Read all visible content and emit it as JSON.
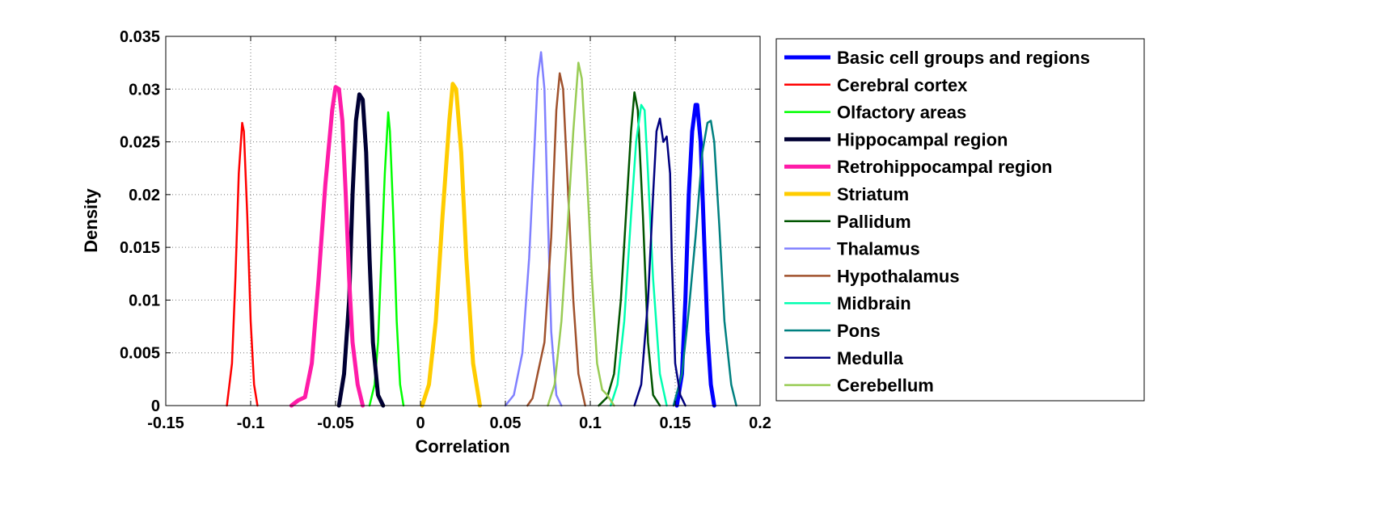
{
  "chart_data": {
    "type": "line",
    "title": "",
    "xlabel": "Correlation",
    "ylabel": "Density",
    "xlim": [
      -0.15,
      0.2
    ],
    "ylim": [
      0,
      0.035
    ],
    "xticks": [
      "-0.15",
      "-0.1",
      "-0.05",
      "0",
      "0.05",
      "0.1",
      "0.15",
      "0.2"
    ],
    "xtick_values": [
      -0.15,
      -0.1,
      -0.05,
      0,
      0.05,
      0.1,
      0.15,
      0.2
    ],
    "yticks": [
      "0",
      "0.005",
      "0.01",
      "0.015",
      "0.02",
      "0.025",
      "0.03",
      "0.035"
    ],
    "ytick_values": [
      0,
      0.005,
      0.01,
      0.015,
      0.02,
      0.025,
      0.03,
      0.035
    ],
    "grid": true,
    "legend_position": "right, outside plot",
    "series": [
      {
        "name": "Basic cell groups and regions",
        "color": "#0000ff",
        "thick": true,
        "x": [
          0.151,
          0.154,
          0.156,
          0.158,
          0.16,
          0.162,
          0.163,
          0.165,
          0.167,
          0.169,
          0.171,
          0.173
        ],
        "y": [
          0,
          0.003,
          0.01,
          0.02,
          0.026,
          0.0285,
          0.0285,
          0.025,
          0.016,
          0.007,
          0.002,
          0
        ]
      },
      {
        "name": "Cerebral cortex",
        "color": "#ff0000",
        "thick": false,
        "x": [
          -0.114,
          -0.111,
          -0.109,
          -0.107,
          -0.105,
          -0.104,
          -0.102,
          -0.1,
          -0.098,
          -0.096
        ],
        "y": [
          0,
          0.004,
          0.012,
          0.022,
          0.0268,
          0.026,
          0.018,
          0.008,
          0.002,
          0
        ]
      },
      {
        "name": "Olfactory areas",
        "color": "#00ff00",
        "thick": false,
        "x": [
          -0.03,
          -0.027,
          -0.025,
          -0.023,
          -0.021,
          -0.019,
          -0.018,
          -0.016,
          -0.014,
          -0.012,
          -0.01
        ],
        "y": [
          0,
          0.002,
          0.006,
          0.014,
          0.022,
          0.0278,
          0.026,
          0.018,
          0.008,
          0.002,
          0
        ]
      },
      {
        "name": "Hippocampal region",
        "color": "#000033",
        "thick": true,
        "x": [
          -0.048,
          -0.045,
          -0.042,
          -0.04,
          -0.038,
          -0.036,
          -0.034,
          -0.032,
          -0.03,
          -0.028,
          -0.025,
          -0.022
        ],
        "y": [
          0,
          0.003,
          0.01,
          0.02,
          0.027,
          0.0295,
          0.029,
          0.024,
          0.014,
          0.006,
          0.001,
          0
        ]
      },
      {
        "name": "Retrohippocampal region",
        "color": "#ff1ca8",
        "thick": true,
        "x": [
          -0.076,
          -0.072,
          -0.068,
          -0.064,
          -0.06,
          -0.056,
          -0.052,
          -0.05,
          -0.048,
          -0.046,
          -0.044,
          -0.042,
          -0.04,
          -0.037,
          -0.034
        ],
        "y": [
          0,
          0.0005,
          0.0008,
          0.004,
          0.012,
          0.021,
          0.028,
          0.0302,
          0.03,
          0.027,
          0.02,
          0.012,
          0.006,
          0.002,
          0
        ]
      },
      {
        "name": "Striatum",
        "color": "#ffcc00",
        "thick": true,
        "x": [
          0.001,
          0.005,
          0.009,
          0.013,
          0.017,
          0.019,
          0.021,
          0.024,
          0.027,
          0.031,
          0.035
        ],
        "y": [
          0,
          0.002,
          0.008,
          0.018,
          0.027,
          0.0305,
          0.03,
          0.024,
          0.014,
          0.004,
          0
        ]
      },
      {
        "name": "Pallidum",
        "color": "#005500",
        "thick": false,
        "x": [
          0.105,
          0.11,
          0.114,
          0.118,
          0.121,
          0.124,
          0.126,
          0.128,
          0.131,
          0.134,
          0.137,
          0.141
        ],
        "y": [
          0,
          0.0008,
          0.003,
          0.01,
          0.018,
          0.026,
          0.0297,
          0.028,
          0.018,
          0.006,
          0.001,
          0
        ]
      },
      {
        "name": "Thalamus",
        "color": "#8080ff",
        "thick": false,
        "x": [
          0.05,
          0.055,
          0.06,
          0.064,
          0.067,
          0.069,
          0.071,
          0.073,
          0.075,
          0.077,
          0.08,
          0.083
        ],
        "y": [
          0,
          0.001,
          0.005,
          0.014,
          0.024,
          0.031,
          0.0335,
          0.03,
          0.018,
          0.007,
          0.001,
          0
        ]
      },
      {
        "name": "Hypothalamus",
        "color": "#a0522d",
        "thick": false,
        "x": [
          0.063,
          0.066,
          0.069,
          0.073,
          0.077,
          0.08,
          0.082,
          0.084,
          0.087,
          0.09,
          0.093,
          0.097
        ],
        "y": [
          0,
          0.0007,
          0.003,
          0.006,
          0.016,
          0.028,
          0.0315,
          0.03,
          0.02,
          0.01,
          0.003,
          0
        ]
      },
      {
        "name": "Midbrain",
        "color": "#00ffb0",
        "thick": false,
        "x": [
          0.112,
          0.116,
          0.12,
          0.124,
          0.127,
          0.13,
          0.132,
          0.134,
          0.137,
          0.141,
          0.145
        ],
        "y": [
          0,
          0.002,
          0.008,
          0.018,
          0.025,
          0.0285,
          0.028,
          0.022,
          0.012,
          0.003,
          0
        ]
      },
      {
        "name": "Pons",
        "color": "#008080",
        "thick": false,
        "x": [
          0.149,
          0.154,
          0.158,
          0.162,
          0.166,
          0.169,
          0.171,
          0.173,
          0.176,
          0.179,
          0.183,
          0.186
        ],
        "y": [
          0,
          0.003,
          0.009,
          0.016,
          0.024,
          0.0268,
          0.027,
          0.025,
          0.017,
          0.008,
          0.002,
          0
        ]
      },
      {
        "name": "Medulla",
        "color": "#000080",
        "thick": false,
        "x": [
          0.126,
          0.13,
          0.134,
          0.137,
          0.139,
          0.141,
          0.143,
          0.145,
          0.147,
          0.148,
          0.15,
          0.153,
          0.156
        ],
        "y": [
          0,
          0.002,
          0.01,
          0.02,
          0.026,
          0.0272,
          0.025,
          0.0255,
          0.022,
          0.014,
          0.004,
          0.001,
          0
        ]
      },
      {
        "name": "Cerebellum",
        "color": "#99cc55",
        "thick": false,
        "x": [
          0.075,
          0.079,
          0.083,
          0.087,
          0.09,
          0.093,
          0.095,
          0.098,
          0.101,
          0.104,
          0.107,
          0.11,
          0.114
        ],
        "y": [
          0,
          0.002,
          0.008,
          0.018,
          0.026,
          0.0325,
          0.031,
          0.022,
          0.012,
          0.004,
          0.0015,
          0.001,
          0
        ]
      }
    ]
  }
}
